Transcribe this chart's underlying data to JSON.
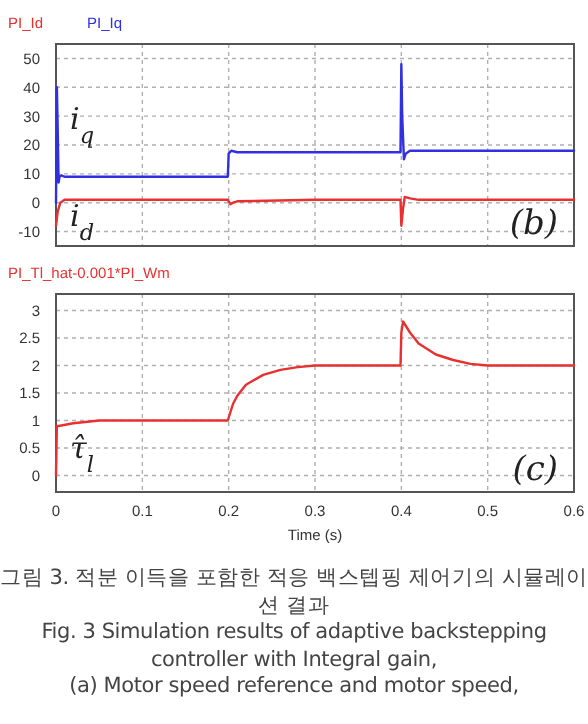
{
  "chart_data": [
    {
      "type": "line",
      "xlim": [
        0,
        0.6
      ],
      "ylim": [
        -15,
        55
      ],
      "xticks": [
        0,
        0.1,
        0.2,
        0.3,
        0.4,
        0.5,
        0.6
      ],
      "yticks": [
        -10,
        0,
        10,
        20,
        30,
        40,
        50
      ],
      "tick_labels": "y",
      "grid": true,
      "legend": "top left",
      "marker": "none",
      "line_style": "solid",
      "series": [
        {
          "name": "PI_Id",
          "color": "#e83030",
          "x": [
            0,
            0.002,
            0.005,
            0.01,
            0.05,
            0.1,
            0.199,
            0.202,
            0.205,
            0.21,
            0.3,
            0.399,
            0.4,
            0.402,
            0.404,
            0.41,
            0.42,
            0.5,
            0.6
          ],
          "values": [
            -8,
            -3,
            0,
            1,
            1,
            1,
            1,
            -0.5,
            0,
            0.5,
            1,
            1,
            -8,
            -2,
            2,
            1.5,
            1,
            1,
            1
          ]
        },
        {
          "name": "PI_Iq",
          "color": "#3030e0",
          "x": [
            0,
            0.001,
            0.002,
            0.003,
            0.004,
            0.006,
            0.01,
            0.1,
            0.199,
            0.2,
            0.203,
            0.21,
            0.3,
            0.399,
            0.4,
            0.401,
            0.403,
            0.405,
            0.41,
            0.5,
            0.6
          ],
          "values": [
            0,
            40,
            25,
            7,
            9,
            9.5,
            9,
            9,
            9,
            17,
            18,
            17.5,
            17.5,
            17.5,
            48,
            30,
            15,
            17,
            18,
            18,
            18
          ]
        }
      ],
      "annotations": [
        "i$_{q}$",
        "i$_{d}$",
        "(b)"
      ]
    },
    {
      "type": "line",
      "xlim": [
        0,
        0.6
      ],
      "ylim": [
        -0.3,
        3.3
      ],
      "xticks": [
        0,
        0.1,
        0.2,
        0.3,
        0.4,
        0.5,
        0.6
      ],
      "yticks": [
        0,
        0.5,
        1,
        1.5,
        2,
        2.5,
        3
      ],
      "xlabel": "Time (s)",
      "grid": true,
      "legend": "top left",
      "marker": "none",
      "line_style": "solid",
      "series": [
        {
          "name": "PI_Tl_hat-0.001*PI_Wm",
          "color": "#e83030",
          "x": [
            0,
            0.001,
            0.003,
            0.02,
            0.05,
            0.1,
            0.199,
            0.2,
            0.205,
            0.21,
            0.22,
            0.24,
            0.26,
            0.28,
            0.3,
            0.35,
            0.399,
            0.4,
            0.402,
            0.41,
            0.42,
            0.44,
            0.46,
            0.48,
            0.5,
            0.6
          ],
          "values": [
            0,
            0.9,
            0.9,
            0.95,
            1,
            1,
            1,
            1.05,
            1.3,
            1.45,
            1.65,
            1.83,
            1.92,
            1.97,
            2,
            2,
            2,
            2.6,
            2.8,
            2.6,
            2.4,
            2.2,
            2.1,
            2.03,
            2,
            2
          ]
        }
      ],
      "annotations": [
        "τ̂$_{l}$",
        "(c)"
      ]
    },
    {
      "type": "other",
      "annotations": [
        "그림 3. 적분 이득을 포함한 적응 백스텝핑 제어기의 시뮬레이션 결과",
        "Fig. 3 Simulation results of adaptive backstepping controller with Integral gain,",
        "(a) Motor speed reference and motor speed,"
      ]
    }
  ]
}
